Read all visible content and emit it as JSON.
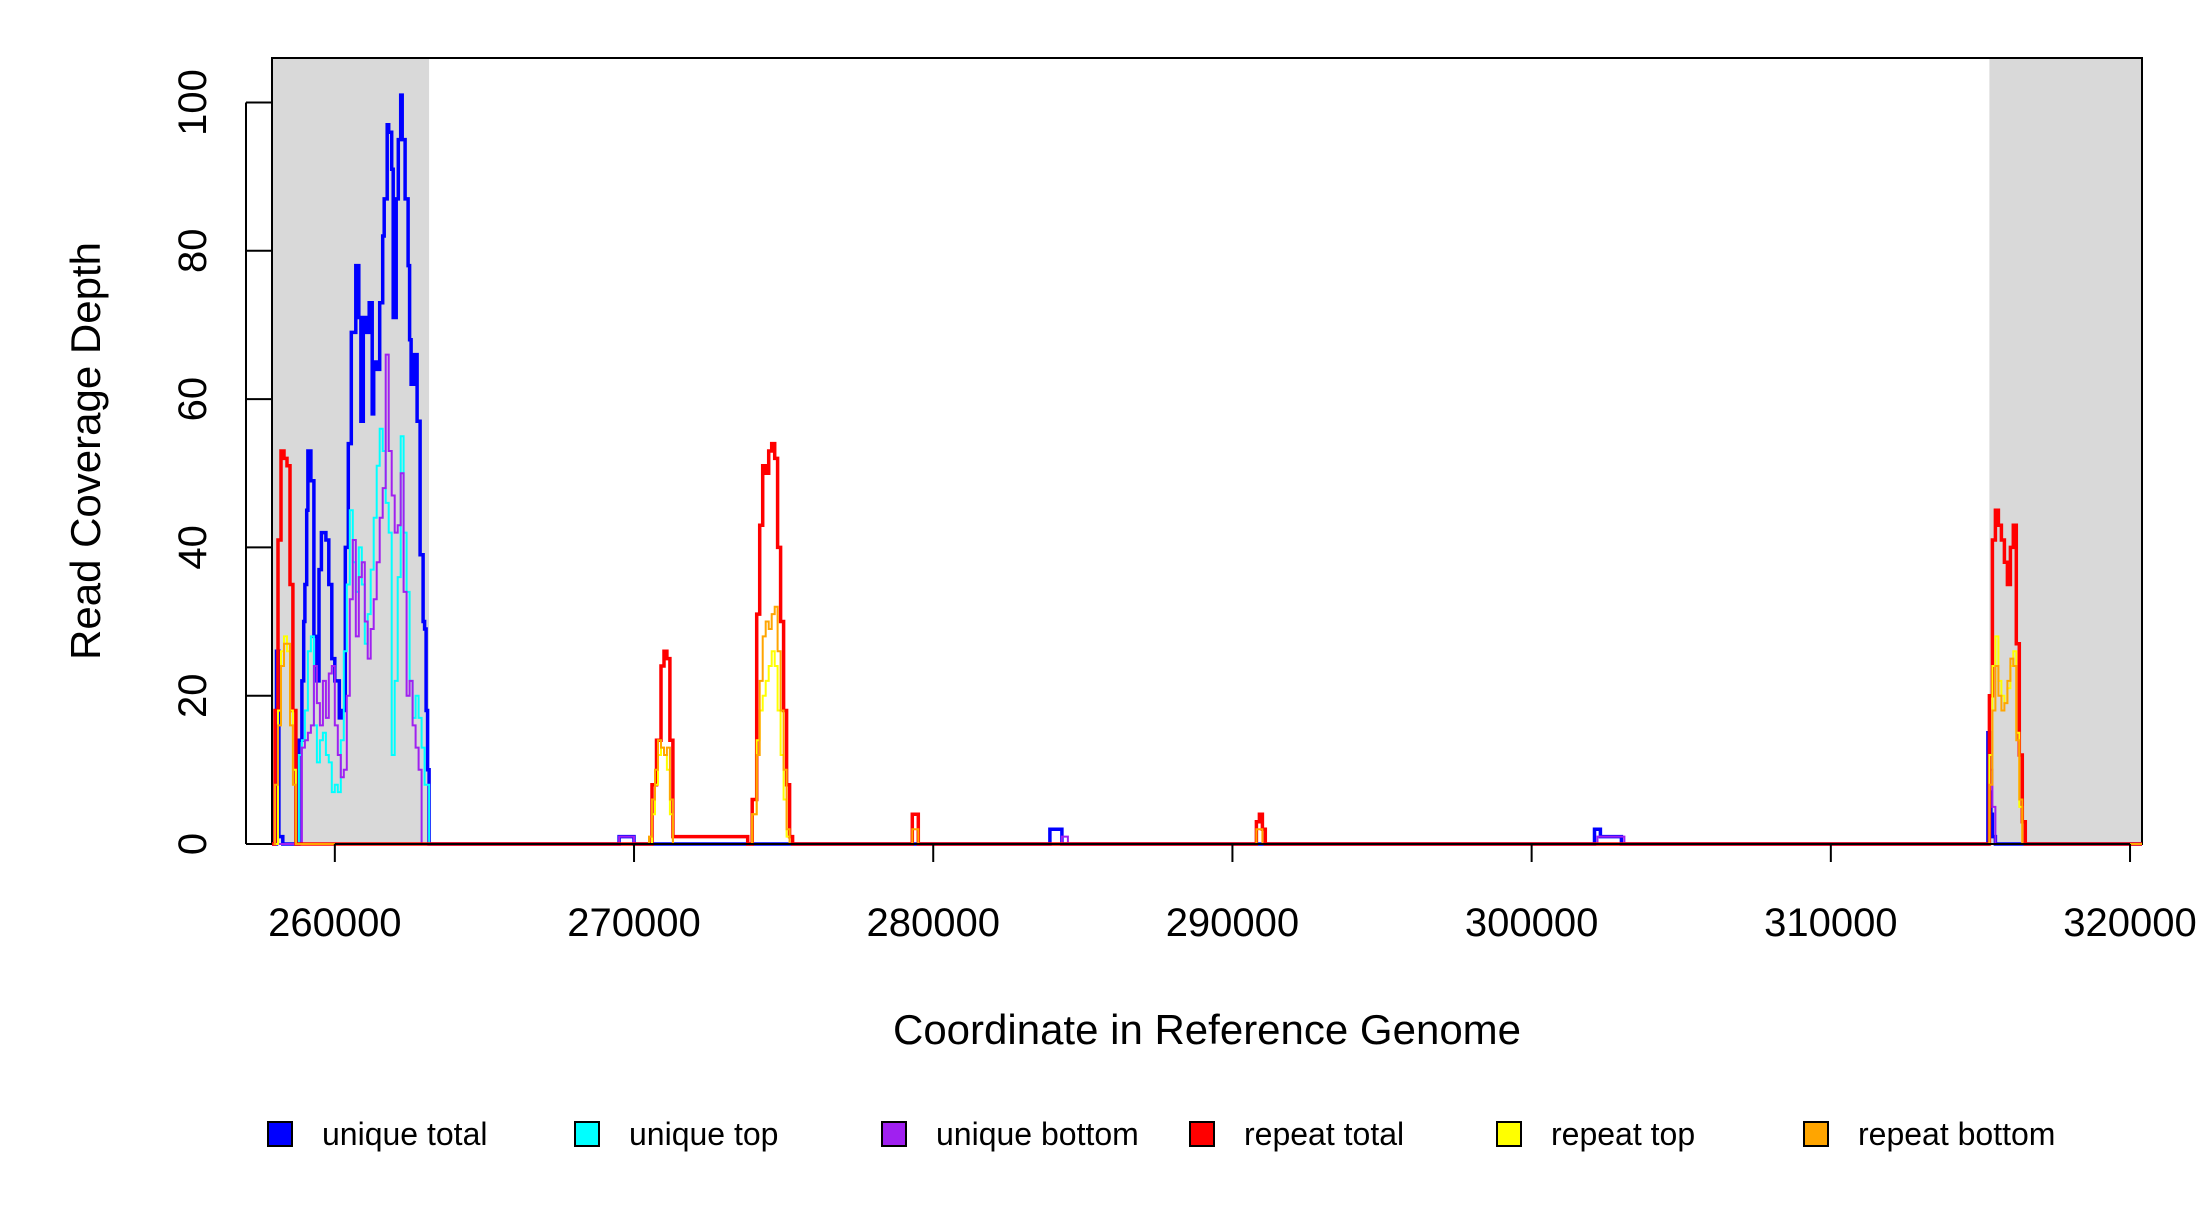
{
  "chart_data": {
    "type": "line",
    "xlabel": "Coordinate in Reference Genome",
    "ylabel": "Read Coverage Depth",
    "xlim": [
      257900,
      320400
    ],
    "ylim": [
      0,
      106
    ],
    "x_ticks": [
      260000,
      270000,
      280000,
      290000,
      300000,
      310000,
      320000
    ],
    "x_tick_labels": [
      "260000",
      "270000",
      "280000",
      "290000",
      "300000",
      "310000",
      "320000"
    ],
    "y_ticks": [
      0,
      20,
      40,
      60,
      80,
      100
    ],
    "y_tick_labels": [
      "0",
      "20",
      "40",
      "60",
      "80",
      "100"
    ],
    "grid": false,
    "shaded_regions": [
      {
        "x_start": 257900,
        "x_end": 263150,
        "color": "#d9d9d9"
      },
      {
        "x_start": 315300,
        "x_end": 320400,
        "color": "#d9d9d9"
      }
    ],
    "legend": {
      "position": "bottom",
      "entries": [
        {
          "label": "unique total",
          "color": "#0000ff"
        },
        {
          "label": "unique top",
          "color": "#00ffff"
        },
        {
          "label": "unique bottom",
          "color": "#a020f0"
        },
        {
          "label": "repeat total",
          "color": "#ff0000"
        },
        {
          "label": "repeat top",
          "color": "#ffff00"
        },
        {
          "label": "repeat bottom",
          "color": "#ffa500"
        }
      ]
    },
    "series": [
      {
        "name": "unique total",
        "color": "#0000ff",
        "width": 3.5,
        "x": [
          257900,
          258050,
          258130,
          258190,
          258260,
          258330,
          258400,
          258470,
          258540,
          258620,
          258700,
          258800,
          258900,
          258960,
          259000,
          259060,
          259100,
          259200,
          259300,
          259400,
          259470,
          259550,
          259620,
          259700,
          259800,
          259900,
          260000,
          260150,
          260250,
          260350,
          260450,
          260550,
          260700,
          260800,
          260870,
          260950,
          261050,
          261150,
          261250,
          261300,
          261400,
          261500,
          261600,
          261650,
          261750,
          261800,
          261900,
          261950,
          262050,
          262120,
          262200,
          262250,
          262350,
          262450,
          262500,
          262550,
          262650,
          262750,
          262850,
          262950,
          263000,
          263050,
          263100,
          263150,
          264000,
          269000,
          269500,
          269700,
          270000,
          283800,
          283900,
          284100,
          284300,
          284500,
          302000,
          302100,
          302300,
          302500,
          302800,
          303000,
          303200,
          315200,
          315250,
          315300,
          315350,
          315400,
          315500,
          320400
        ],
        "y": [
          0,
          26,
          1,
          1,
          0,
          0,
          0,
          0,
          0,
          0,
          0,
          14,
          22,
          30,
          35,
          45,
          53,
          49,
          28,
          22,
          37,
          42,
          42,
          41,
          35,
          25,
          22,
          17,
          18,
          40,
          54,
          69,
          78,
          71,
          57,
          71,
          69,
          73,
          58,
          65,
          64,
          73,
          82,
          87,
          97,
          96,
          91,
          71,
          87,
          95,
          101,
          95,
          87,
          78,
          68,
          62,
          66,
          57,
          39,
          30,
          29,
          18,
          10,
          0,
          0,
          0,
          1,
          1,
          0,
          0,
          2,
          2,
          0,
          0,
          0,
          2,
          1,
          1,
          1,
          0,
          0,
          0,
          15,
          7,
          4,
          1,
          0,
          0
        ]
      },
      {
        "name": "unique top",
        "color": "#00ffff",
        "width": 2,
        "x": [
          258200,
          258800,
          258900,
          259000,
          259100,
          259200,
          259300,
          259400,
          259500,
          259600,
          259700,
          259800,
          259900,
          260000,
          260100,
          260200,
          260300,
          260400,
          260500,
          260600,
          260700,
          260800,
          260900,
          261000,
          261100,
          261200,
          261300,
          261400,
          261500,
          261600,
          261700,
          261800,
          261900,
          262000,
          262100,
          262200,
          262300,
          262400,
          262500,
          262600,
          262700,
          262800,
          262900,
          263000,
          263150
        ],
        "y": [
          0,
          12,
          14,
          18,
          26,
          28,
          16,
          11,
          14,
          15,
          12,
          11,
          7,
          8,
          7,
          14,
          26,
          35,
          45,
          38,
          34,
          40,
          35,
          27,
          31,
          37,
          44,
          51,
          56,
          53,
          46,
          42,
          12,
          22,
          36,
          55,
          42,
          34,
          22,
          17,
          20,
          17,
          13,
          8,
          0
        ]
      },
      {
        "name": "unique bottom",
        "color": "#a020f0",
        "width": 2,
        "x": [
          257950,
          258200,
          258800,
          258900,
          259000,
          259100,
          259200,
          259300,
          259400,
          259500,
          259600,
          259700,
          259800,
          259900,
          260000,
          260100,
          260200,
          260300,
          260400,
          260500,
          260600,
          260700,
          260800,
          260900,
          261000,
          261100,
          261200,
          261300,
          261400,
          261500,
          261600,
          261700,
          261800,
          261900,
          262000,
          262100,
          262200,
          262300,
          262400,
          262500,
          262600,
          262700,
          262800,
          262900,
          263000,
          263150,
          264000,
          269000,
          269500,
          269700,
          270000,
          284000,
          284300,
          284500,
          302000,
          302200,
          302500,
          302800,
          303100,
          315200,
          315300,
          315400,
          315500,
          320400
        ],
        "y": [
          0,
          0,
          0,
          13,
          14,
          15,
          16,
          24,
          19,
          16,
          22,
          17,
          23,
          24,
          16,
          12,
          9,
          10,
          20,
          33,
          41,
          28,
          36,
          38,
          30,
          25,
          29,
          33,
          38,
          44,
          48,
          66,
          53,
          47,
          42,
          43,
          50,
          34,
          20,
          22,
          16,
          13,
          10,
          0,
          0,
          0,
          0,
          0,
          1,
          1,
          0,
          0,
          1,
          0,
          0,
          1,
          1,
          1,
          0,
          0,
          10,
          5,
          0,
          0
        ]
      },
      {
        "name": "repeat total",
        "color": "#ff0000",
        "width": 3.5,
        "x": [
          257900,
          258000,
          258100,
          258200,
          258300,
          258400,
          258500,
          258600,
          258700,
          263000,
          270500,
          270600,
          270750,
          270900,
          271000,
          271100,
          271200,
          271300,
          273800,
          273950,
          274100,
          274200,
          274300,
          274400,
          274500,
          274600,
          274700,
          274800,
          274900,
          275000,
          275100,
          275200,
          275300,
          279200,
          279300,
          279400,
          279500,
          290700,
          290800,
          290900,
          291000,
          291100,
          315200,
          315300,
          315400,
          315500,
          315600,
          315700,
          315800,
          315900,
          316000,
          316100,
          316200,
          316300,
          316400,
          316500,
          320400
        ],
        "y": [
          0,
          18,
          41,
          53,
          52,
          51,
          35,
          18,
          0,
          0,
          0,
          8,
          14,
          24,
          26,
          25,
          14,
          1,
          0,
          6,
          31,
          43,
          51,
          50,
          53,
          54,
          52,
          40,
          30,
          18,
          8,
          1,
          0,
          0,
          4,
          4,
          0,
          0,
          3,
          4,
          2,
          0,
          0,
          20,
          41,
          45,
          43,
          41,
          38,
          35,
          40,
          43,
          27,
          12,
          3,
          0,
          0
        ]
      },
      {
        "name": "repeat top",
        "color": "#ffff00",
        "width": 2,
        "x": [
          258000,
          258100,
          258200,
          258300,
          258400,
          258500,
          258600,
          258700,
          270500,
          270600,
          270700,
          270800,
          270900,
          271000,
          271100,
          271200,
          271300,
          273800,
          273950,
          274100,
          274200,
          274300,
          274400,
          274500,
          274600,
          274700,
          274800,
          274900,
          275000,
          275100,
          275200,
          315200,
          315300,
          315400,
          315500,
          315600,
          315700,
          315800,
          315900,
          316000,
          316100,
          316200,
          316300,
          316400
        ],
        "y": [
          0,
          18,
          26,
          28,
          26,
          18,
          10,
          0,
          0,
          4,
          8,
          12,
          13,
          12,
          10,
          4,
          0,
          0,
          4,
          14,
          18,
          20,
          22,
          24,
          26,
          24,
          18,
          12,
          6,
          1,
          0,
          0,
          12,
          24,
          28,
          22,
          20,
          19,
          21,
          24,
          26,
          15,
          5,
          0
        ]
      },
      {
        "name": "repeat bottom",
        "color": "#ffa500",
        "width": 2,
        "x": [
          257950,
          258000,
          258100,
          258200,
          258300,
          258400,
          258500,
          258600,
          258700,
          263150,
          270400,
          270500,
          270600,
          270700,
          270800,
          270900,
          271000,
          271100,
          271200,
          271300,
          273800,
          273950,
          274100,
          274200,
          274300,
          274400,
          274500,
          274600,
          274700,
          274800,
          274900,
          275000,
          275100,
          275200,
          279200,
          279300,
          279400,
          279500,
          290700,
          290800,
          290900,
          291000,
          315200,
          315300,
          315400,
          315500,
          315600,
          315700,
          315800,
          315900,
          316000,
          316100,
          316200,
          316300,
          316400,
          320400
        ],
        "y": [
          0,
          8,
          16,
          24,
          27,
          27,
          16,
          8,
          0,
          0,
          0,
          1,
          6,
          10,
          14,
          13,
          12,
          13,
          6,
          0,
          0,
          4,
          12,
          22,
          28,
          30,
          29,
          31,
          32,
          26,
          18,
          10,
          2,
          0,
          0,
          2,
          2,
          0,
          0,
          2,
          2,
          0,
          0,
          8,
          18,
          24,
          20,
          18,
          19,
          22,
          25,
          24,
          14,
          6,
          0,
          0
        ]
      }
    ]
  }
}
